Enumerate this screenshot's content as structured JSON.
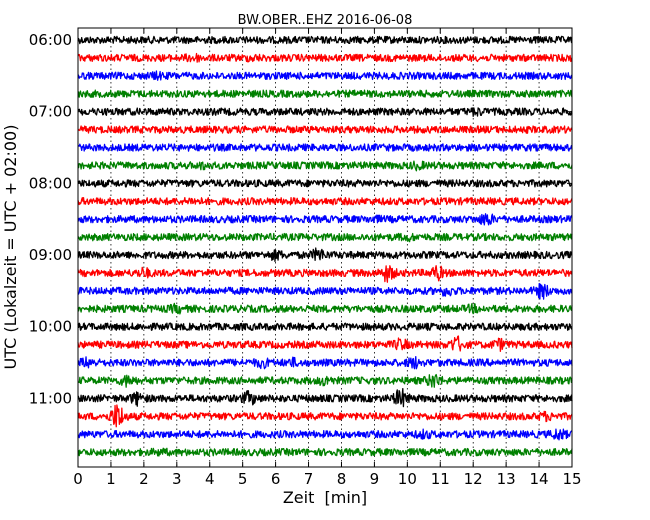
{
  "chart_data": {
    "type": "line",
    "title": "BW.OBER..EHZ 2016-06-08",
    "xlabel": "Zeit  [min]",
    "ylabel": "UTC (Lokalzeit = UTC + 02:00)",
    "xlim": [
      0,
      15
    ],
    "x_ticks": [
      "0",
      "1",
      "2",
      "3",
      "4",
      "5",
      "6",
      "7",
      "8",
      "9",
      "10",
      "11",
      "12",
      "13",
      "14",
      "15"
    ],
    "y_ticks": [
      "06:00",
      "07:00",
      "08:00",
      "09:00",
      "10:00",
      "11:00"
    ],
    "grid": "vertical dotted",
    "trace_interval_min": 15,
    "trace_colors": [
      "#000000",
      "#ff0000",
      "#0000ff",
      "#008000"
    ],
    "traces": [
      {
        "start": "06:00",
        "events": []
      },
      {
        "start": "06:15",
        "events": [
          [
            3.5,
            1.6
          ],
          [
            5.3,
            1.3
          ]
        ]
      },
      {
        "start": "06:30",
        "events": [
          [
            2.4,
            1.4
          ]
        ]
      },
      {
        "start": "06:45",
        "events": []
      },
      {
        "start": "07:00",
        "events": [
          [
            12.1,
            1.5
          ]
        ]
      },
      {
        "start": "07:15",
        "events": []
      },
      {
        "start": "07:30",
        "events": []
      },
      {
        "start": "07:45",
        "events": [
          [
            3.8,
            1.4
          ],
          [
            10.3,
            1.5
          ]
        ]
      },
      {
        "start": "08:00",
        "events": []
      },
      {
        "start": "08:15",
        "events": [
          [
            3.5,
            1.3
          ]
        ]
      },
      {
        "start": "08:30",
        "events": [
          [
            12.4,
            2.2
          ],
          [
            9.0,
            1.3
          ]
        ]
      },
      {
        "start": "08:45",
        "events": [
          [
            10.0,
            1.4
          ]
        ]
      },
      {
        "start": "09:00",
        "events": [
          [
            6.0,
            1.8
          ],
          [
            7.3,
            2.2
          ]
        ]
      },
      {
        "start": "09:15",
        "events": [
          [
            2.0,
            1.8
          ],
          [
            9.4,
            2.8
          ],
          [
            10.9,
            2.4
          ]
        ]
      },
      {
        "start": "09:30",
        "events": [
          [
            11.2,
            1.8
          ],
          [
            14.1,
            2.5
          ]
        ]
      },
      {
        "start": "09:45",
        "events": [
          [
            3.0,
            1.6
          ],
          [
            12.0,
            1.5
          ]
        ]
      },
      {
        "start": "10:00",
        "events": []
      },
      {
        "start": "10:15",
        "events": [
          [
            9.8,
            2.0
          ],
          [
            11.5,
            2.6
          ],
          [
            12.8,
            2.0
          ]
        ]
      },
      {
        "start": "10:30",
        "events": [
          [
            0.3,
            1.8
          ],
          [
            5.6,
            1.8
          ],
          [
            6.5,
            1.6
          ],
          [
            10.2,
            2.0
          ]
        ]
      },
      {
        "start": "10:45",
        "events": [
          [
            1.5,
            2.0
          ],
          [
            7.5,
            1.8
          ],
          [
            10.8,
            2.4
          ]
        ]
      },
      {
        "start": "11:00",
        "events": [
          [
            1.8,
            2.2
          ],
          [
            5.2,
            2.3
          ],
          [
            9.8,
            3.0
          ]
        ]
      },
      {
        "start": "11:15",
        "events": [
          [
            1.2,
            4.0
          ],
          [
            14.2,
            1.6
          ]
        ]
      },
      {
        "start": "11:30",
        "events": [
          [
            10.5,
            1.6
          ],
          [
            14.6,
            2.0
          ]
        ]
      },
      {
        "start": "11:45",
        "events": [
          [
            2.5,
            1.3
          ]
        ]
      }
    ]
  }
}
